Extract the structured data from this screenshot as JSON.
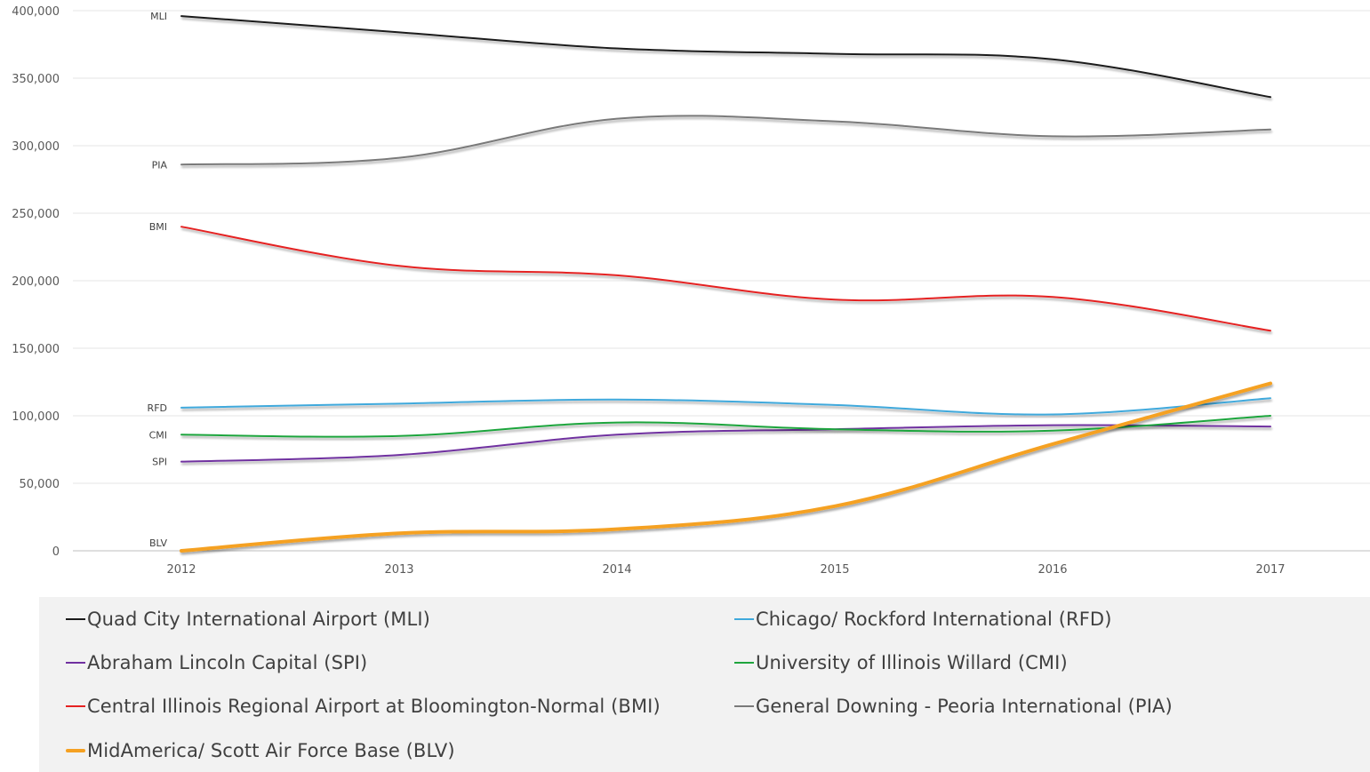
{
  "chart_data": {
    "type": "line",
    "title": "",
    "xlabel": "",
    "ylabel": "",
    "x": [
      "2012",
      "2013",
      "2014",
      "2015",
      "2016",
      "2017"
    ],
    "ylim": [
      0,
      400000
    ],
    "yticks": [
      0,
      50000,
      100000,
      150000,
      200000,
      250000,
      300000,
      350000,
      400000
    ],
    "ytick_labels": [
      "0",
      "50,000",
      "100,000",
      "150,000",
      "200,000",
      "250,000",
      "300,000",
      "350,000",
      "400,000"
    ],
    "grid": true,
    "legend_position": "bottom",
    "series": [
      {
        "name": "Quad City International Airport (MLI)",
        "short": "MLI",
        "color": "#1a1a1a",
        "values": [
          396000,
          384000,
          372000,
          368000,
          364000,
          336000
        ]
      },
      {
        "name": "Chicago/ Rockford International (RFD)",
        "short": "RFD",
        "color": "#3fa9dc",
        "values": [
          106000,
          109000,
          112000,
          108000,
          101000,
          113000
        ]
      },
      {
        "name": "Abraham Lincoln Capital (SPI)",
        "short": "SPI",
        "color": "#7030a0",
        "values": [
          66000,
          71000,
          86000,
          90000,
          93000,
          92000
        ]
      },
      {
        "name": "University of Illinois Willard (CMI)",
        "short": "CMI",
        "color": "#1fa53d",
        "values": [
          86000,
          85000,
          95000,
          90000,
          89000,
          100000
        ]
      },
      {
        "name": "Central Illinois Regional Airport at Bloomington-Normal (BMI)",
        "short": "BMI",
        "color": "#e52222",
        "values": [
          240000,
          211000,
          204000,
          186000,
          188000,
          163000
        ]
      },
      {
        "name": "General Downing - Peoria International (PIA)",
        "short": "PIA",
        "color": "#7a7a7a",
        "values": [
          286000,
          291000,
          320000,
          318000,
          307000,
          312000
        ]
      },
      {
        "name": "MidAmerica/ Scott Air Force Base (BLV)",
        "short": "BLV",
        "color": "#f5a122",
        "values": [
          0,
          13000,
          16000,
          33000,
          79000,
          124000
        ],
        "thick": true
      }
    ]
  },
  "legend": {
    "items": [
      {
        "label": "Quad City International Airport (MLI)",
        "color": "#1a1a1a"
      },
      {
        "label": "Chicago/ Rockford International (RFD)",
        "color": "#3fa9dc"
      },
      {
        "label": "Abraham Lincoln Capital (SPI)",
        "color": "#7030a0"
      },
      {
        "label": "University of Illinois Willard (CMI)",
        "color": "#1fa53d"
      },
      {
        "label": "Central Illinois Regional Airport at Bloomington-Normal (BMI)",
        "color": "#e52222"
      },
      {
        "label": "General Downing - Peoria International (PIA)",
        "color": "#7a7a7a"
      },
      {
        "label": "MidAmerica/ Scott Air Force Base (BLV)",
        "color": "#f5a122"
      }
    ]
  }
}
